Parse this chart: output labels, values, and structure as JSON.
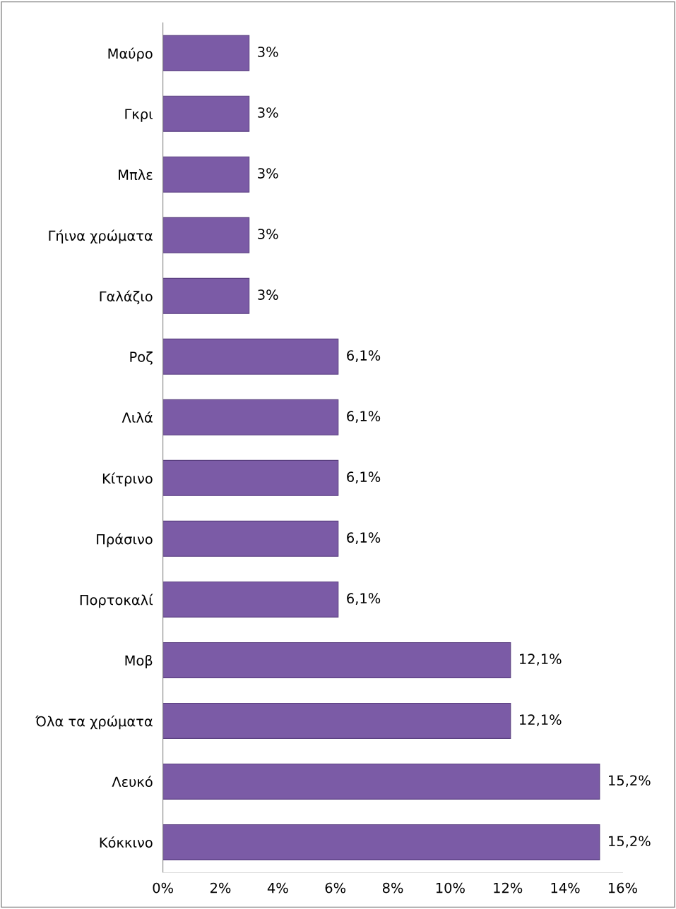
{
  "chart_data": {
    "type": "bar",
    "orientation": "horizontal",
    "categories": [
      "Μαύρο",
      "Γκρι",
      "Μπλε",
      "Γήινα χρώματα",
      "Γαλάζιο",
      "Ροζ",
      "Λιλά",
      "Κίτρινο",
      "Πράσινο",
      "Πορτοκαλί",
      "Μοβ",
      "Όλα τα χρώματα",
      "Λευκό",
      "Κόκκινο"
    ],
    "values": [
      3,
      3,
      3,
      3,
      3,
      6.1,
      6.1,
      6.1,
      6.1,
      6.1,
      12.1,
      12.1,
      15.2,
      15.2
    ],
    "value_labels": [
      "3%",
      "3%",
      "3%",
      "3%",
      "3%",
      "6,1%",
      "6,1%",
      "6,1%",
      "6,1%",
      "6,1%",
      "12,1%",
      "12,1%",
      "15,2%",
      "15,2%"
    ],
    "color": "#7b5ba6",
    "xlim": [
      0,
      16
    ],
    "xticks": [
      {
        "value": 0,
        "label": "0%"
      },
      {
        "value": 2,
        "label": "2%"
      },
      {
        "value": 4,
        "label": "4%"
      },
      {
        "value": 6,
        "label": "6%"
      },
      {
        "value": 8,
        "label": "8%"
      },
      {
        "value": 10,
        "label": "10%"
      },
      {
        "value": 12,
        "label": "12%"
      },
      {
        "value": 14,
        "label": "14%"
      },
      {
        "value": 16,
        "label": "16%"
      }
    ],
    "grid": false,
    "legend": false
  }
}
